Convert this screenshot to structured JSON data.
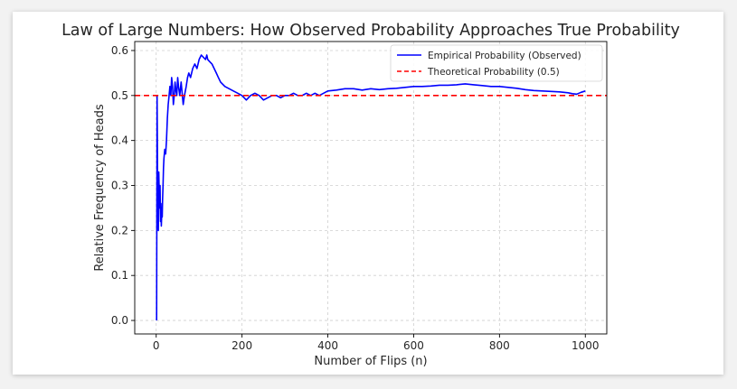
{
  "chart_data": {
    "type": "line",
    "title": "Law of Large Numbers: How Observed Probability Approaches True Probability",
    "xlabel": "Number of Flips (n)",
    "ylabel": "Relative Frequency of Heads",
    "xlim": [
      -50,
      1050
    ],
    "ylim": [
      -0.03,
      0.62
    ],
    "xticks": [
      0,
      200,
      400,
      600,
      800,
      1000
    ],
    "yticks": [
      0.0,
      0.1,
      0.2,
      0.3,
      0.4,
      0.5,
      0.6
    ],
    "xtick_labels": [
      "0",
      "200",
      "400",
      "600",
      "800",
      "1000"
    ],
    "ytick_labels": [
      "0.0",
      "0.1",
      "0.2",
      "0.3",
      "0.4",
      "0.5",
      "0.6"
    ],
    "grid": true,
    "legend_position": "top-right",
    "series": [
      {
        "name": "Empirical Probability (Observed)",
        "color": "#0000ff",
        "style": "solid",
        "x": [
          1,
          2,
          3,
          4,
          5,
          6,
          7,
          8,
          9,
          10,
          11,
          12,
          13,
          14,
          15,
          16,
          17,
          18,
          20,
          22,
          24,
          26,
          28,
          30,
          32,
          34,
          36,
          38,
          40,
          42,
          44,
          46,
          48,
          50,
          52,
          55,
          58,
          60,
          63,
          66,
          70,
          73,
          76,
          80,
          85,
          90,
          95,
          100,
          105,
          110,
          115,
          118,
          120,
          125,
          130,
          135,
          140,
          145,
          150,
          160,
          170,
          180,
          190,
          200,
          210,
          220,
          230,
          240,
          250,
          260,
          270,
          280,
          290,
          300,
          310,
          320,
          330,
          340,
          350,
          360,
          370,
          380,
          390,
          400,
          420,
          440,
          460,
          480,
          500,
          520,
          540,
          560,
          580,
          600,
          620,
          640,
          660,
          680,
          700,
          720,
          740,
          760,
          780,
          800,
          820,
          840,
          860,
          880,
          900,
          920,
          940,
          960,
          970,
          980,
          990,
          1000
        ],
        "y": [
          0.0,
          0.5,
          0.33,
          0.25,
          0.2,
          0.33,
          0.29,
          0.25,
          0.3,
          0.22,
          0.26,
          0.21,
          0.24,
          0.23,
          0.27,
          0.3,
          0.34,
          0.36,
          0.38,
          0.37,
          0.4,
          0.45,
          0.48,
          0.5,
          0.52,
          0.5,
          0.54,
          0.52,
          0.48,
          0.5,
          0.53,
          0.51,
          0.5,
          0.54,
          0.52,
          0.5,
          0.53,
          0.51,
          0.48,
          0.5,
          0.52,
          0.54,
          0.55,
          0.54,
          0.56,
          0.57,
          0.56,
          0.58,
          0.59,
          0.585,
          0.58,
          0.59,
          0.58,
          0.575,
          0.57,
          0.56,
          0.55,
          0.54,
          0.53,
          0.52,
          0.515,
          0.51,
          0.505,
          0.5,
          0.49,
          0.5,
          0.505,
          0.5,
          0.49,
          0.495,
          0.5,
          0.5,
          0.495,
          0.5,
          0.5,
          0.505,
          0.5,
          0.5,
          0.505,
          0.5,
          0.505,
          0.5,
          0.505,
          0.51,
          0.512,
          0.515,
          0.515,
          0.512,
          0.515,
          0.513,
          0.515,
          0.516,
          0.518,
          0.52,
          0.52,
          0.521,
          0.523,
          0.523,
          0.524,
          0.526,
          0.524,
          0.522,
          0.52,
          0.52,
          0.518,
          0.516,
          0.513,
          0.511,
          0.51,
          0.509,
          0.508,
          0.506,
          0.504,
          0.503,
          0.507,
          0.51
        ]
      },
      {
        "name": "Theoretical Probability (0.5)",
        "color": "#ff0000",
        "style": "dashed",
        "x": [
          -50,
          1050
        ],
        "y": [
          0.5,
          0.5
        ]
      }
    ]
  }
}
